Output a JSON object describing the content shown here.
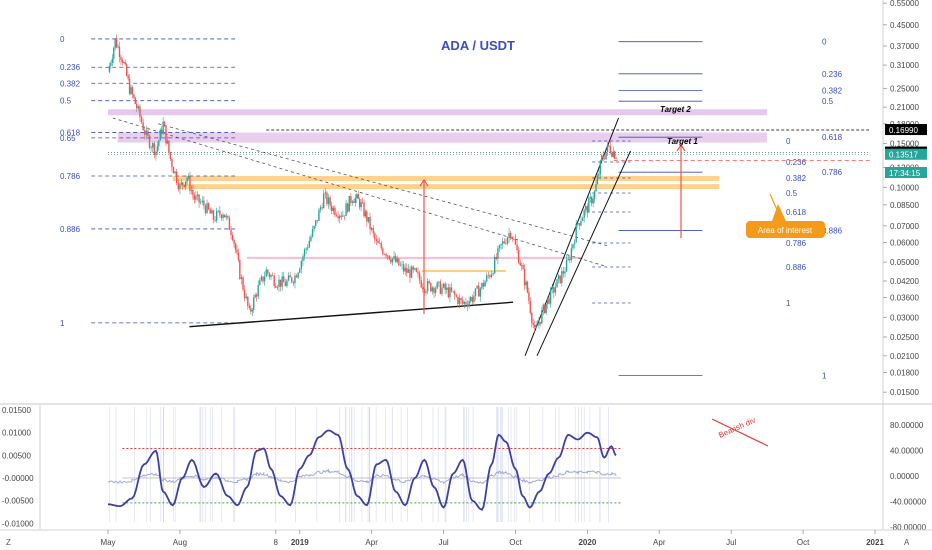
{
  "chart_data": {
    "type": "candlestick",
    "title": "ADA / USDT",
    "price_axis": {
      "ticks": [
        "0.55000",
        "0.45000",
        "0.37000",
        "0.31000",
        "0.25000",
        "0.21000",
        "0.18000",
        "0.15000",
        "0.12000",
        "0.10000",
        "0.08500",
        "0.07000",
        "0.06000",
        "0.05000",
        "0.04200",
        "0.03600",
        "0.03000",
        "0.02500",
        "0.02100",
        "0.01800",
        "0.01500"
      ],
      "tick_values": [
        0.55,
        0.45,
        0.37,
        0.31,
        0.25,
        0.21,
        0.18,
        0.15,
        0.12,
        0.1,
        0.085,
        0.07,
        0.06,
        0.05,
        0.042,
        0.036,
        0.03,
        0.025,
        0.021,
        0.018,
        0.015
      ],
      "scale": "log"
    },
    "time_axis": {
      "ticks": [
        "May",
        "Aug",
        "8",
        "2019",
        "Apr",
        "Jul",
        "Oct",
        "2020",
        "Apr",
        "Jul",
        "Oct",
        "2021"
      ]
    },
    "price_tags": [
      {
        "label": "0.16990",
        "value": 0.1699,
        "bg": "#000000"
      },
      {
        "label": "0.13793",
        "value": 0.13793,
        "bg": "#000000"
      },
      {
        "label": "0.13517",
        "value": 0.13517,
        "bg": "#26a69a"
      },
      {
        "label": "17:34:15",
        "value": null,
        "bg": "#26a69a"
      }
    ],
    "fib_left": {
      "levels": [
        "0",
        "0.236",
        "0.382",
        "0.5",
        "0.618",
        "0.65",
        "0.786",
        "0.886",
        "1"
      ],
      "values": [
        0.395,
        0.304,
        0.262,
        0.223,
        0.166,
        0.158,
        0.111,
        0.068,
        0.0285
      ]
    },
    "fib_right_upper": {
      "levels": [
        "0",
        "0.236",
        "0.382",
        "0.5",
        "0.618",
        "0.786",
        "0.886",
        "1"
      ],
      "values": [
        0.385,
        0.286,
        0.245,
        0.222,
        0.159,
        0.115,
        0.067,
        0.0175
      ]
    },
    "fib_right_inner": {
      "levels": [
        "0",
        "0.236",
        "0.382",
        "0.5",
        "0.618",
        "0.786",
        "0.886",
        "1"
      ]
    },
    "annotations": {
      "target1": "Target 1",
      "target2": "Target 2",
      "area": "Area of interest",
      "bearish": "Bearish div"
    },
    "price_series": [
      {
        "month": 0,
        "close": 0.29
      },
      {
        "month": 0.3,
        "close": 0.39
      },
      {
        "month": 0.6,
        "close": 0.33
      },
      {
        "month": 0.9,
        "close": 0.25
      },
      {
        "month": 1.2,
        "close": 0.21
      },
      {
        "month": 1.6,
        "close": 0.16
      },
      {
        "month": 2.0,
        "close": 0.14
      },
      {
        "month": 2.3,
        "close": 0.18
      },
      {
        "month": 2.6,
        "close": 0.13
      },
      {
        "month": 3.0,
        "close": 0.1
      },
      {
        "month": 3.3,
        "close": 0.11
      },
      {
        "month": 3.6,
        "close": 0.09
      },
      {
        "month": 4.0,
        "close": 0.085
      },
      {
        "month": 4.4,
        "close": 0.075
      },
      {
        "month": 4.8,
        "close": 0.08
      },
      {
        "month": 5.2,
        "close": 0.065
      },
      {
        "month": 5.5,
        "close": 0.045
      },
      {
        "month": 5.9,
        "close": 0.031
      },
      {
        "month": 6.2,
        "close": 0.038
      },
      {
        "month": 6.6,
        "close": 0.046
      },
      {
        "month": 7.0,
        "close": 0.042
      },
      {
        "month": 7.4,
        "close": 0.041
      },
      {
        "month": 7.8,
        "close": 0.044
      },
      {
        "month": 8.2,
        "close": 0.055
      },
      {
        "month": 8.6,
        "close": 0.068
      },
      {
        "month": 9.0,
        "close": 0.092
      },
      {
        "month": 9.4,
        "close": 0.082
      },
      {
        "month": 9.8,
        "close": 0.078
      },
      {
        "month": 10.2,
        "close": 0.092
      },
      {
        "month": 10.5,
        "close": 0.087
      },
      {
        "month": 10.8,
        "close": 0.075
      },
      {
        "month": 11.2,
        "close": 0.059
      },
      {
        "month": 11.6,
        "close": 0.055
      },
      {
        "month": 12.0,
        "close": 0.05
      },
      {
        "month": 12.4,
        "close": 0.046
      },
      {
        "month": 12.8,
        "close": 0.045
      },
      {
        "month": 13.2,
        "close": 0.04
      },
      {
        "month": 13.6,
        "close": 0.04
      },
      {
        "month": 14.0,
        "close": 0.039
      },
      {
        "month": 14.4,
        "close": 0.037
      },
      {
        "month": 14.8,
        "close": 0.034
      },
      {
        "month": 15.2,
        "close": 0.036
      },
      {
        "month": 15.6,
        "close": 0.04
      },
      {
        "month": 16.0,
        "close": 0.046
      },
      {
        "month": 16.4,
        "close": 0.058
      },
      {
        "month": 16.8,
        "close": 0.067
      },
      {
        "month": 17.2,
        "close": 0.05
      },
      {
        "month": 17.5,
        "close": 0.038
      },
      {
        "month": 17.8,
        "close": 0.026
      },
      {
        "month": 18.1,
        "close": 0.031
      },
      {
        "month": 18.4,
        "close": 0.036
      },
      {
        "month": 18.8,
        "close": 0.042
      },
      {
        "month": 19.2,
        "close": 0.05
      },
      {
        "month": 19.6,
        "close": 0.072
      },
      {
        "month": 20.0,
        "close": 0.083
      },
      {
        "month": 20.3,
        "close": 0.095
      },
      {
        "month": 20.6,
        "close": 0.13
      },
      {
        "month": 20.9,
        "close": 0.145
      },
      {
        "month": 21.2,
        "close": 0.135
      }
    ],
    "indicator": {
      "axis_left": [
        "0.01500",
        "0.01000",
        "0.00500",
        "-0.00000",
        "-0.00500",
        "-0.01000"
      ],
      "axis_left_values": [
        0.015,
        0.01,
        0.005,
        0,
        -0.005,
        -0.01
      ],
      "axis_right": [
        "80.00000",
        "40.00000",
        "0.00000",
        "-40.00000",
        "-80.00000"
      ],
      "axis_right_values": [
        80,
        40,
        0,
        -40,
        -80
      ],
      "overbought": 0.0065,
      "oversold": -0.0055,
      "oscillator": [
        {
          "month": 0,
          "value": -0.0058
        },
        {
          "month": 0.5,
          "value": -0.0062
        },
        {
          "month": 1.0,
          "value": -0.0045
        },
        {
          "month": 1.5,
          "value": 0.003
        },
        {
          "month": 2.0,
          "value": 0.006
        },
        {
          "month": 2.3,
          "value": -0.003
        },
        {
          "month": 2.7,
          "value": -0.006
        },
        {
          "month": 3.1,
          "value": 0.0
        },
        {
          "month": 3.5,
          "value": 0.004
        },
        {
          "month": 4.0,
          "value": -0.002
        },
        {
          "month": 4.5,
          "value": 0.001
        },
        {
          "month": 5.0,
          "value": -0.004
        },
        {
          "month": 5.4,
          "value": -0.006
        },
        {
          "month": 5.8,
          "value": -0.002
        },
        {
          "month": 6.2,
          "value": 0.006
        },
        {
          "month": 6.5,
          "value": 0.0065
        },
        {
          "month": 6.8,
          "value": 0.002
        },
        {
          "month": 7.2,
          "value": -0.004
        },
        {
          "month": 7.6,
          "value": -0.006
        },
        {
          "month": 8.0,
          "value": 0.002
        },
        {
          "month": 8.4,
          "value": 0.005
        },
        {
          "month": 8.8,
          "value": 0.009
        },
        {
          "month": 9.2,
          "value": 0.0105
        },
        {
          "month": 9.6,
          "value": 0.0095
        },
        {
          "month": 10.0,
          "value": 0.002
        },
        {
          "month": 10.4,
          "value": -0.004
        },
        {
          "month": 10.8,
          "value": -0.006
        },
        {
          "month": 11.2,
          "value": 0.003
        },
        {
          "month": 11.6,
          "value": 0.004
        },
        {
          "month": 12.0,
          "value": -0.003
        },
        {
          "month": 12.4,
          "value": -0.006
        },
        {
          "month": 12.8,
          "value": 0.0
        },
        {
          "month": 13.2,
          "value": 0.004
        },
        {
          "month": 13.6,
          "value": -0.002
        },
        {
          "month": 14.0,
          "value": -0.0065
        },
        {
          "month": 14.4,
          "value": 0.001
        },
        {
          "month": 14.8,
          "value": 0.004
        },
        {
          "month": 15.2,
          "value": -0.005
        },
        {
          "month": 15.6,
          "value": -0.007
        },
        {
          "month": 16.0,
          "value": 0.003
        },
        {
          "month": 16.3,
          "value": 0.0095
        },
        {
          "month": 16.6,
          "value": 0.008
        },
        {
          "month": 17.0,
          "value": 0.002
        },
        {
          "month": 17.3,
          "value": -0.004
        },
        {
          "month": 17.6,
          "value": -0.0065
        },
        {
          "month": 18.0,
          "value": -0.003
        },
        {
          "month": 18.4,
          "value": 0.001
        },
        {
          "month": 18.8,
          "value": 0.0045
        },
        {
          "month": 19.2,
          "value": 0.0095
        },
        {
          "month": 19.6,
          "value": 0.0085
        },
        {
          "month": 20.0,
          "value": 0.01
        },
        {
          "month": 20.4,
          "value": 0.009
        },
        {
          "month": 20.7,
          "value": 0.0045
        },
        {
          "month": 21.0,
          "value": 0.007
        },
        {
          "month": 21.2,
          "value": 0.005
        }
      ]
    }
  },
  "footer": {
    "left_icon": "Z",
    "right_icon": "A"
  },
  "colors": {
    "up": "#26a69a",
    "down": "#ef5350",
    "fib": "#3b4cc0",
    "zone_orange": "#ffcc80",
    "zone_purple": "#e1bee7",
    "zone_pink": "#f8bbd0",
    "wt_line": "#3f3fa0",
    "ob_line": "#e53935",
    "os_line": "#43a047"
  }
}
